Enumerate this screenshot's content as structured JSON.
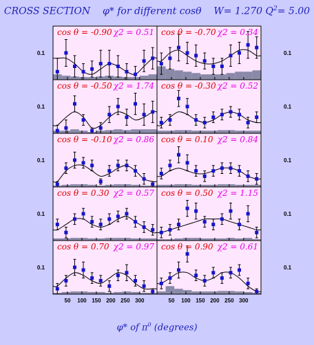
{
  "title": {
    "prefix": "CROSS SECTION",
    "phi": "φ*",
    "mid": "for different",
    "cos": "cosθ",
    "w": "W= 1.270",
    "q": "Q",
    "q_exp": "2",
    "q_val": "= 5.00"
  },
  "xaxis": {
    "phi": "φ*",
    "of": "of",
    "pi": "π",
    "pi_exp": "0",
    "units": "(degrees)"
  },
  "colors": {
    "background": "#ccccff",
    "panel": "#ffe6ff",
    "text_red": "#dd0000",
    "text_magenta": "#e600e6",
    "marker": "#1414cc",
    "systematic": "#8a8aa8",
    "title_blue": "#1d21b8"
  },
  "chart_data": {
    "type": "scatter",
    "layout": "5 rows x 2 columns",
    "x_ticks": [
      "50",
      "100",
      "150",
      "200",
      "250",
      "300"
    ],
    "y_tick": "0.1",
    "xlim": [
      0,
      360
    ],
    "ylim": [
      0,
      0.2
    ],
    "x": [
      15,
      45,
      75,
      105,
      135,
      165,
      195,
      225,
      255,
      285,
      315,
      345
    ],
    "panels": [
      {
        "cos_label": "cos θ = -0.90",
        "chi_label": "χ2 = 0.51",
        "values": [
          0.03,
          0.1,
          0.05,
          0.03,
          0.04,
          0.06,
          0.06,
          0.05,
          0.03,
          0.02,
          0.07,
          0.08
        ],
        "errors": [
          0.05,
          0.05,
          0.04,
          0.03,
          0.03,
          0.05,
          0.05,
          0.04,
          0.03,
          0.03,
          0.04,
          0.04
        ],
        "curve": [
          0.08,
          0.08,
          0.06,
          0.03,
          0.02,
          0.04,
          0.06,
          0.05,
          0.03,
          0.02,
          0.05,
          0.08
        ],
        "sys": [
          0.02,
          0.015,
          0.012,
          0.01,
          0.01,
          0.012,
          0.015,
          0.012,
          0.01,
          0.01,
          0.015,
          0.02
        ]
      },
      {
        "cos_label": "cos θ = -0.70",
        "chi_label": "χ2 = 0.34",
        "values": [
          0.06,
          0.08,
          0.12,
          0.1,
          0.09,
          0.07,
          0.05,
          0.05,
          0.09,
          0.1,
          0.13,
          0.12
        ],
        "errors": [
          0.04,
          0.04,
          0.05,
          0.04,
          0.04,
          0.03,
          0.03,
          0.03,
          0.04,
          0.04,
          0.05,
          0.04
        ],
        "curve": [
          0.07,
          0.1,
          0.11,
          0.09,
          0.07,
          0.06,
          0.06,
          0.07,
          0.09,
          0.11,
          0.11,
          0.09
        ],
        "sys": [
          0.05,
          0.04,
          0.035,
          0.03,
          0.025,
          0.02,
          0.02,
          0.02,
          0.025,
          0.03,
          0.03,
          0.035
        ]
      },
      {
        "cos_label": "cos θ = -0.50",
        "chi_label": "χ2 = 1.74",
        "values": [
          0.01,
          0.02,
          0.11,
          0.05,
          0.01,
          0.02,
          0.07,
          0.1,
          0.06,
          0.11,
          0.07,
          0.08
        ],
        "errors": [
          0.02,
          0.03,
          0.03,
          0.02,
          0.01,
          0.02,
          0.03,
          0.03,
          0.03,
          0.04,
          0.04,
          0.04
        ],
        "curve": [
          0.03,
          0.06,
          0.08,
          0.06,
          0.02,
          0.03,
          0.06,
          0.08,
          0.07,
          0.05,
          0.06,
          0.08
        ],
        "sys": [
          0.01,
          0.01,
          0.015,
          0.01,
          0.005,
          0.01,
          0.012,
          0.015,
          0.012,
          0.015,
          0.015,
          0.015
        ]
      },
      {
        "cos_label": "cos θ = -0.30",
        "chi_label": "χ2 = 0.52",
        "values": [
          0.04,
          0.05,
          0.13,
          0.1,
          0.05,
          0.04,
          0.06,
          0.07,
          0.08,
          0.07,
          0.04,
          0.06
        ],
        "errors": [
          0.02,
          0.02,
          0.03,
          0.03,
          0.02,
          0.02,
          0.02,
          0.02,
          0.02,
          0.02,
          0.02,
          0.02
        ],
        "curve": [
          0.03,
          0.06,
          0.08,
          0.07,
          0.05,
          0.04,
          0.05,
          0.07,
          0.08,
          0.07,
          0.05,
          0.04
        ],
        "sys": [
          0.01,
          0.01,
          0.012,
          0.012,
          0.01,
          0.01,
          0.01,
          0.012,
          0.012,
          0.01,
          0.01,
          0.01
        ]
      },
      {
        "cos_label": "cos θ = -0.10",
        "chi_label": "χ2 = 0.86",
        "values": [
          0.01,
          0.07,
          0.1,
          0.09,
          0.08,
          0.02,
          0.06,
          0.08,
          0.08,
          0.06,
          0.03,
          0.01
        ],
        "errors": [
          0.01,
          0.02,
          0.03,
          0.02,
          0.02,
          0.01,
          0.02,
          0.02,
          0.02,
          0.02,
          0.02,
          0.01
        ],
        "curve": [
          0.02,
          0.06,
          0.08,
          0.08,
          0.06,
          0.04,
          0.05,
          0.07,
          0.08,
          0.06,
          0.03,
          0.02
        ],
        "sys": [
          0.005,
          0.008,
          0.01,
          0.01,
          0.008,
          0.005,
          0.008,
          0.01,
          0.01,
          0.008,
          0.005,
          0.005
        ]
      },
      {
        "cos_label": "cos θ = 0.10",
        "chi_label": "χ2 = 0.84",
        "values": [
          0.05,
          0.08,
          0.12,
          0.09,
          0.06,
          0.04,
          0.06,
          0.07,
          0.07,
          0.06,
          0.04,
          0.03
        ],
        "errors": [
          0.02,
          0.02,
          0.03,
          0.03,
          0.02,
          0.02,
          0.02,
          0.02,
          0.02,
          0.02,
          0.02,
          0.02
        ],
        "curve": [
          0.04,
          0.06,
          0.07,
          0.06,
          0.05,
          0.05,
          0.06,
          0.07,
          0.07,
          0.06,
          0.04,
          0.03
        ],
        "sys": [
          0.008,
          0.008,
          0.01,
          0.01,
          0.008,
          0.008,
          0.008,
          0.01,
          0.01,
          0.008,
          0.008,
          0.008
        ]
      },
      {
        "cos_label": "cos θ = 0.30",
        "chi_label": "χ2 = 0.57",
        "values": [
          0.06,
          0.03,
          0.08,
          0.1,
          0.07,
          0.06,
          0.08,
          0.09,
          0.1,
          0.07,
          0.05,
          0.04
        ],
        "errors": [
          0.02,
          0.02,
          0.02,
          0.02,
          0.02,
          0.02,
          0.02,
          0.02,
          0.02,
          0.02,
          0.02,
          0.02
        ],
        "curve": [
          0.04,
          0.06,
          0.08,
          0.08,
          0.06,
          0.05,
          0.06,
          0.08,
          0.09,
          0.07,
          0.05,
          0.03
        ],
        "sys": [
          0.008,
          0.008,
          0.01,
          0.01,
          0.008,
          0.008,
          0.01,
          0.01,
          0.01,
          0.008,
          0.008,
          0.008
        ]
      },
      {
        "cos_label": "cos θ = 0.50",
        "chi_label": "χ2 = 1.15",
        "values": [
          0.03,
          0.04,
          0.06,
          0.12,
          0.11,
          0.07,
          0.06,
          0.08,
          0.11,
          0.06,
          0.1,
          0.03
        ],
        "errors": [
          0.02,
          0.02,
          0.02,
          0.03,
          0.03,
          0.02,
          0.02,
          0.02,
          0.03,
          0.02,
          0.03,
          0.02
        ],
        "curve": [
          0.03,
          0.04,
          0.05,
          0.06,
          0.07,
          0.08,
          0.08,
          0.08,
          0.07,
          0.06,
          0.05,
          0.04
        ],
        "sys": [
          0.005,
          0.005,
          0.008,
          0.01,
          0.01,
          0.008,
          0.008,
          0.008,
          0.01,
          0.008,
          0.01,
          0.005
        ]
      },
      {
        "cos_label": "cos θ = 0.70",
        "chi_label": "χ2 = 0.97",
        "values": [
          0.02,
          0.05,
          0.1,
          0.09,
          0.06,
          0.05,
          0.03,
          0.07,
          0.08,
          0.05,
          0.03,
          0.01
        ],
        "errors": [
          0.02,
          0.02,
          0.03,
          0.03,
          0.02,
          0.02,
          0.02,
          0.02,
          0.03,
          0.02,
          0.02,
          0.01
        ],
        "curve": [
          0.03,
          0.06,
          0.08,
          0.07,
          0.05,
          0.04,
          0.06,
          0.08,
          0.07,
          0.04,
          0.02,
          0.02
        ],
        "sys": [
          0.005,
          0.008,
          0.01,
          0.01,
          0.008,
          0.008,
          0.005,
          0.008,
          0.01,
          0.008,
          0.005,
          0.005
        ]
      },
      {
        "cos_label": "cos θ = 0.90",
        "chi_label": "χ2 = 0.61",
        "values": [
          0.04,
          0.06,
          0.09,
          0.15,
          0.07,
          0.05,
          0.08,
          0.06,
          0.08,
          0.09,
          0.04,
          0.01
        ],
        "errors": [
          0.02,
          0.02,
          0.03,
          0.03,
          0.02,
          0.02,
          0.02,
          0.02,
          0.02,
          0.02,
          0.02,
          0.01
        ],
        "curve": [
          0.04,
          0.06,
          0.08,
          0.08,
          0.06,
          0.05,
          0.06,
          0.08,
          0.08,
          0.06,
          0.03,
          0.01
        ],
        "sys": [
          0.01,
          0.03,
          0.02,
          0.015,
          0.01,
          0.01,
          0.01,
          0.012,
          0.012,
          0.01,
          0.008,
          0.005
        ]
      }
    ]
  }
}
